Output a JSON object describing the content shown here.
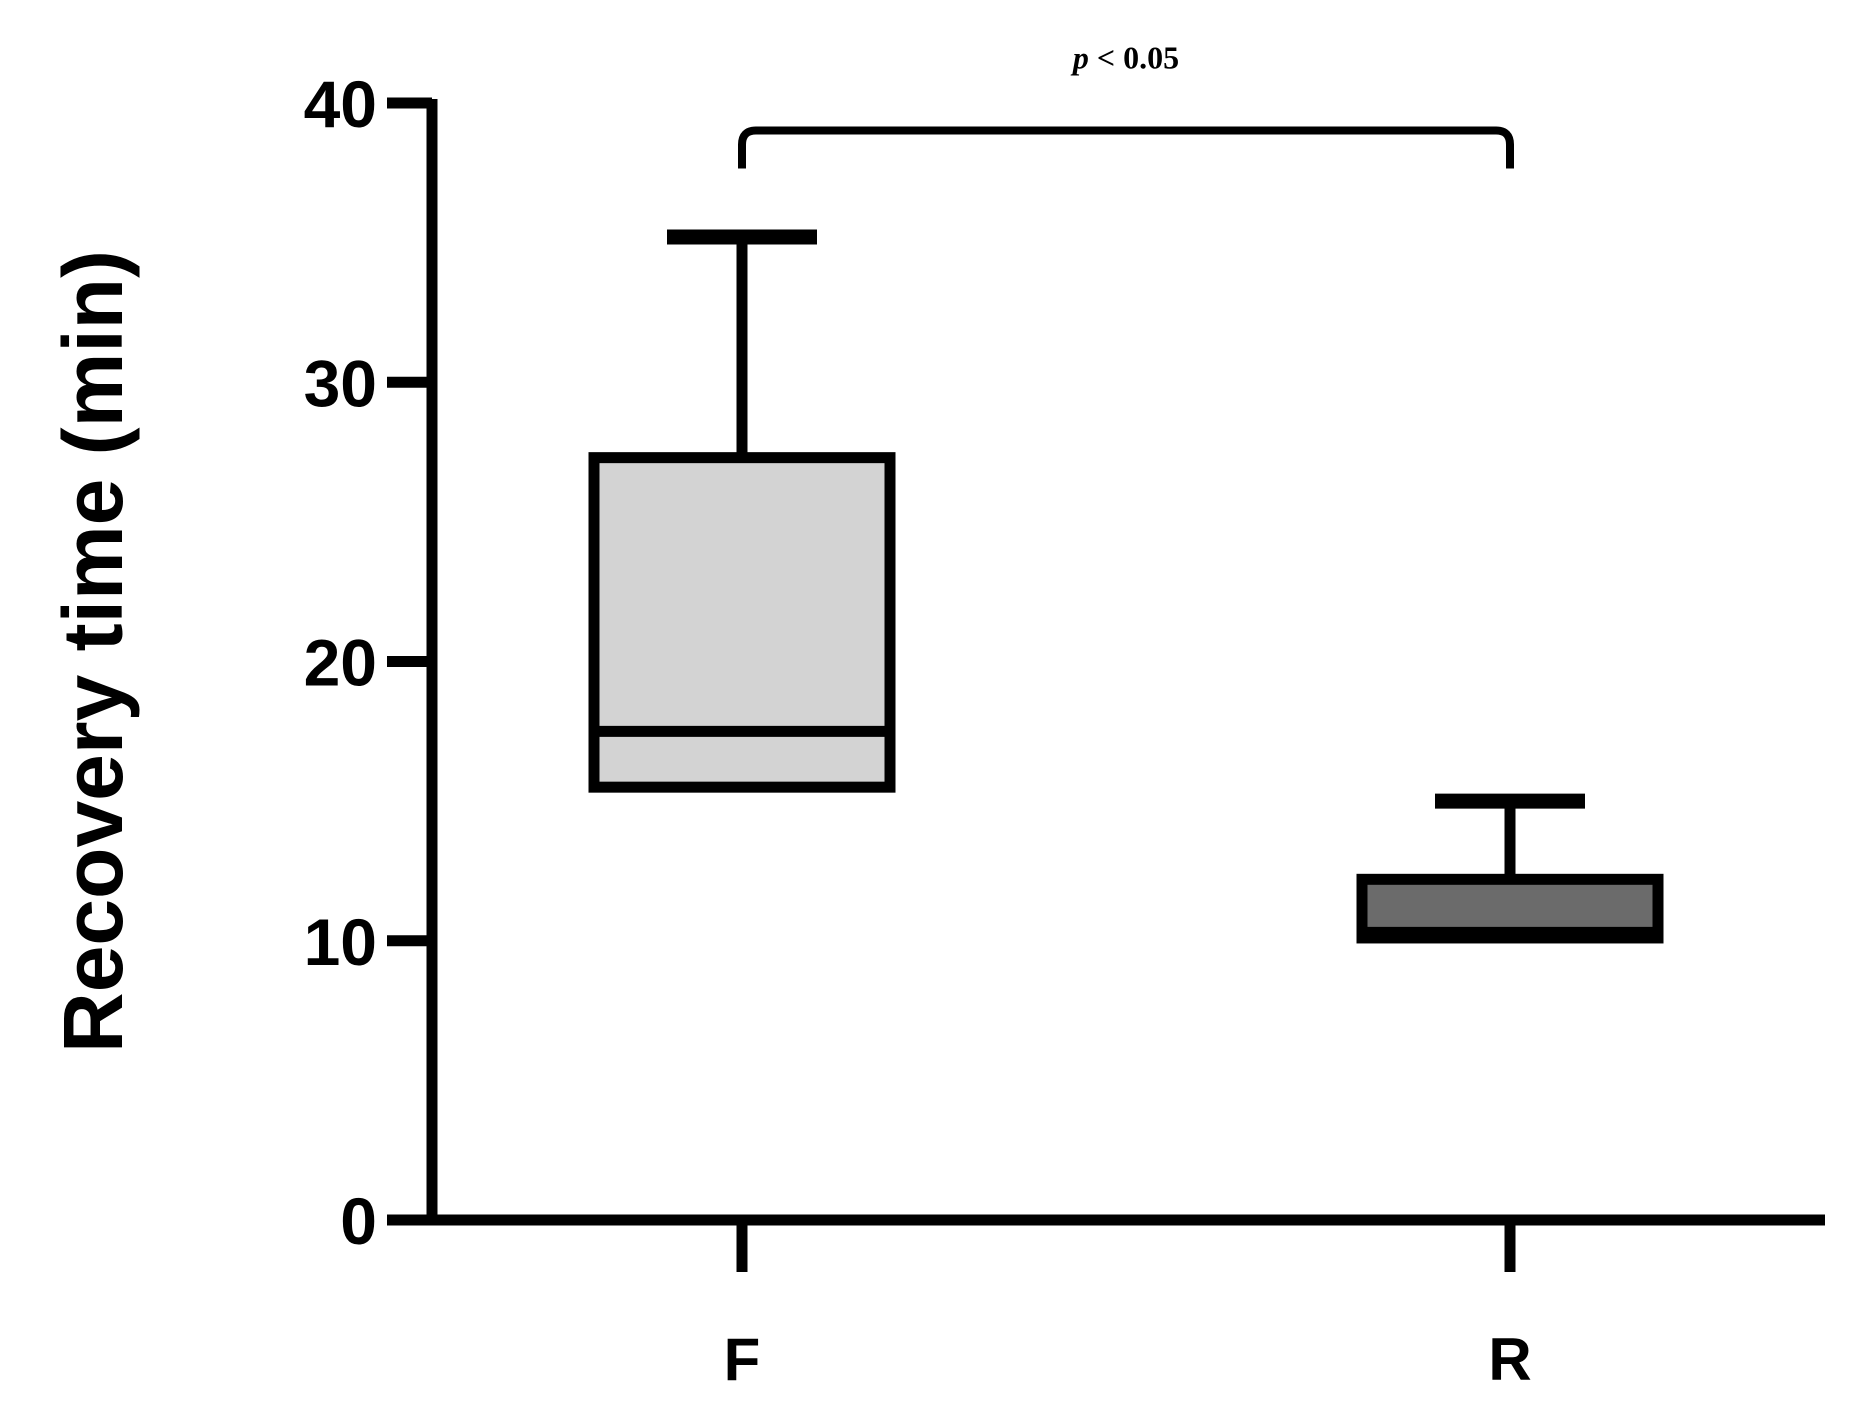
{
  "chart_data": {
    "type": "box",
    "ylabel": "Recovery time (min)",
    "xlabel": "",
    "ylim": [
      0,
      40
    ],
    "yticks": [
      0,
      10,
      20,
      30,
      40
    ],
    "grid": false,
    "categories": [
      "F",
      "R"
    ],
    "boxes": [
      {
        "category": "F",
        "min": 15.5,
        "q1": 15.5,
        "median": 17.5,
        "q3": 27.3,
        "max": 35.2,
        "fill": "#d3d3d3"
      },
      {
        "category": "R",
        "min": 10.1,
        "q1": 10.1,
        "median": 10.3,
        "q3": 12.2,
        "max": 15.0,
        "fill": "#6b6b6b"
      }
    ],
    "annotations": [
      {
        "type": "significance-bracket",
        "from": "F",
        "to": "R",
        "y": 39.3,
        "text_italic": "p",
        "text_rest": " < 0.05"
      }
    ]
  }
}
